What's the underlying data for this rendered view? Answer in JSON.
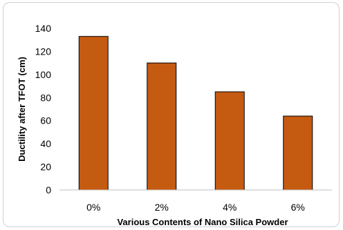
{
  "chart_data": {
    "type": "bar",
    "title": "",
    "xlabel": "Various Contents of Nano Silica Powder",
    "ylabel": "Ductility after TFOT (cm)",
    "categories": [
      "0%",
      "2%",
      "4%",
      "6%"
    ],
    "values": [
      133,
      110,
      85,
      64
    ],
    "ylim": [
      0,
      140
    ],
    "yticks": [
      0,
      20,
      40,
      60,
      80,
      100,
      120,
      140
    ],
    "grid": false,
    "legend": "none",
    "colors": {
      "bar_fill": "#C55A11",
      "bar_stroke": "#000000",
      "axis": "#bfbfbf",
      "frame": "#d0d0d0"
    }
  }
}
